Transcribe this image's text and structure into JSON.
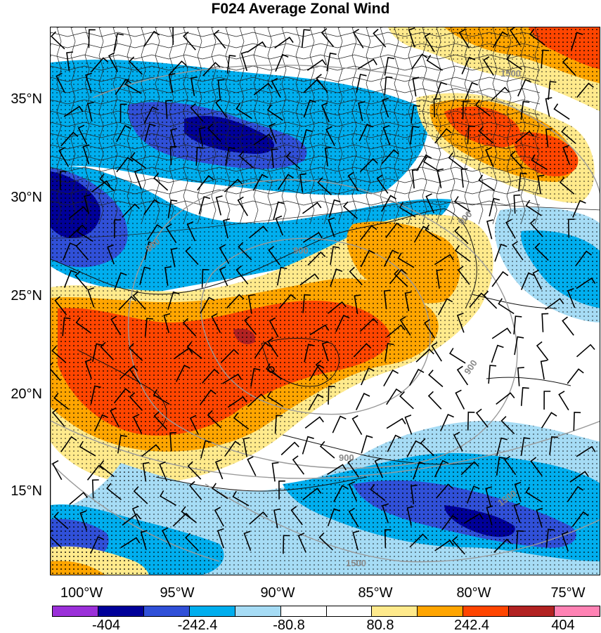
{
  "title": "F024 Average Zonal Wind",
  "latitude_labels": [
    "35°N",
    "30°N",
    "25°N",
    "20°N",
    "15°N"
  ],
  "longitude_labels": [
    "100°W",
    "95°W",
    "90°W",
    "85°W",
    "80°W",
    "75°W"
  ],
  "colorbar": {
    "colors": [
      "#9b30d9",
      "#000099",
      "#3050d8",
      "#00aeee",
      "#a6dcf5",
      "#ffffff",
      "#ffffff",
      "#ffea8c",
      "#ffa500",
      "#ff4500",
      "#b22222",
      "#ff82b4"
    ],
    "tick_labels": [
      "-404",
      "-242.4",
      "-80.8",
      "80.8",
      "242.4",
      "404"
    ]
  },
  "contour_labels": [
    "900",
    "900",
    "900",
    "900",
    "900",
    "1500",
    "1500",
    "1500"
  ],
  "chart_data": {
    "type": "heatmap",
    "title": "F024 Average Zonal Wind",
    "xlabel": "",
    "ylabel": "",
    "x_ticks": [
      "100°W",
      "95°W",
      "90°W",
      "85°W",
      "80°W",
      "75°W"
    ],
    "y_ticks": [
      "35°N",
      "30°N",
      "25°N",
      "20°N",
      "15°N"
    ],
    "xlim": [
      -100.2,
      -74.6
    ],
    "ylim": [
      10.8,
      38.5
    ],
    "color_levels": [
      -404,
      -242.4,
      -80.8,
      80.8,
      242.4,
      404
    ],
    "grid": false,
    "legend": "bottom"
  }
}
